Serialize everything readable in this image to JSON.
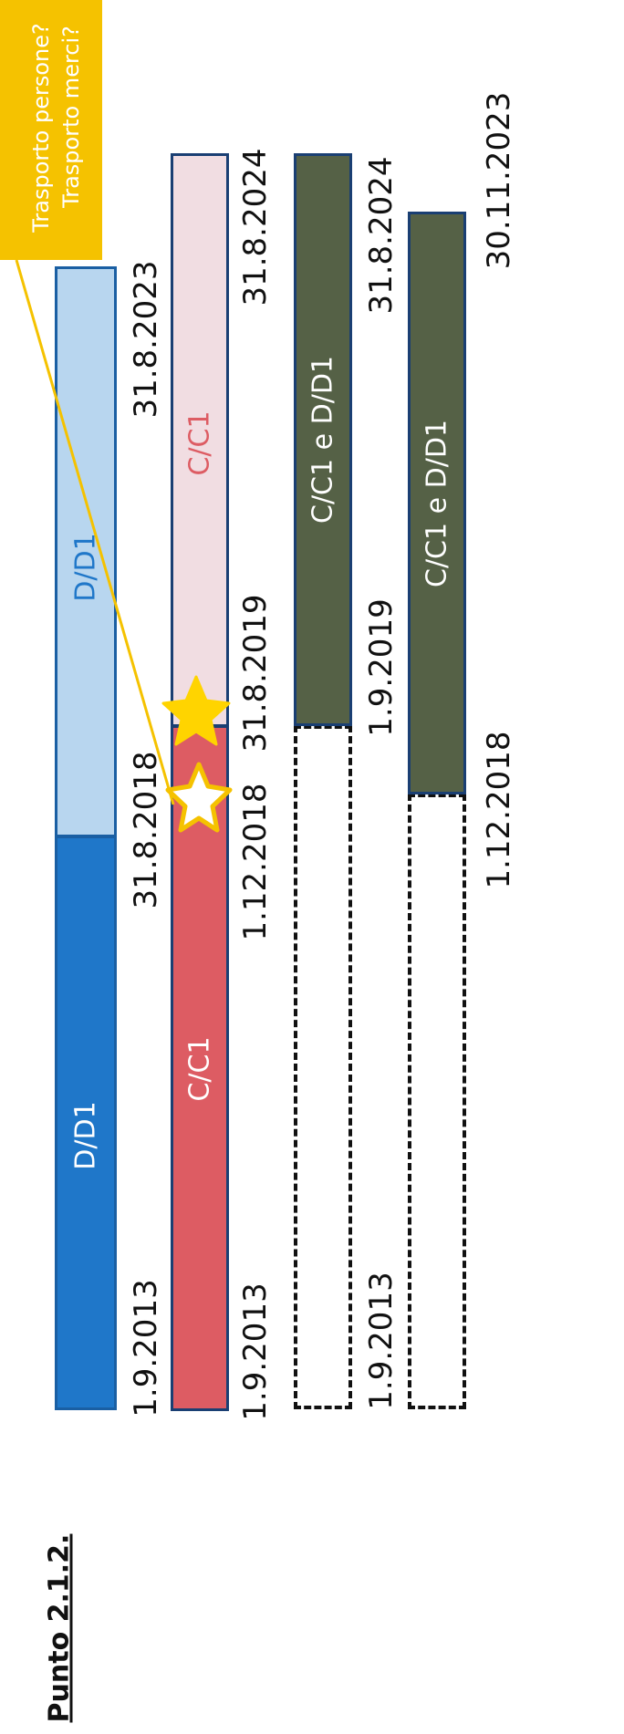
{
  "title": "Punto 2.1.2.",
  "callout": {
    "line1": "Trasporto persone?",
    "line2": "Trasporto merci?"
  },
  "rows": [
    {
      "segments": [
        {
          "label": "D/D1",
          "color": "#1f77c9",
          "text_color": "#ffffff"
        },
        {
          "label": "D/D1",
          "color": "#b8d6ef",
          "text_color": "#1f77c9"
        }
      ],
      "dates": [
        "1.9.2013",
        "31.8.2018",
        "31.8.2023"
      ]
    },
    {
      "segments": [
        {
          "label": "C/C1",
          "color": "#dd5c63",
          "text_color": "#ffffff"
        },
        {
          "label": "C/C1",
          "color": "#f1dde2",
          "text_color": "#dd5c63"
        }
      ],
      "dates": [
        "1.9.2013",
        "1.12.2018",
        "31.8.2019",
        "31.8.2024"
      ]
    },
    {
      "segments": [
        {
          "label": "C/C1 e D/D1",
          "color": "#556146",
          "text_color": "#ffffff"
        }
      ],
      "dates": [
        "1.9.2013",
        "1.9.2019",
        "31.8.2024"
      ]
    },
    {
      "segments": [
        {
          "label": "C/C1 e D/D1",
          "color": "#556146",
          "text_color": "#ffffff"
        }
      ],
      "dates": [
        "1.12.2018",
        "30.11.2023"
      ]
    }
  ],
  "colors": {
    "callout": "#f5c200",
    "star_fill": "#ffd400",
    "star_outline": "#ffffff",
    "border_dark": "#1a3f73"
  }
}
